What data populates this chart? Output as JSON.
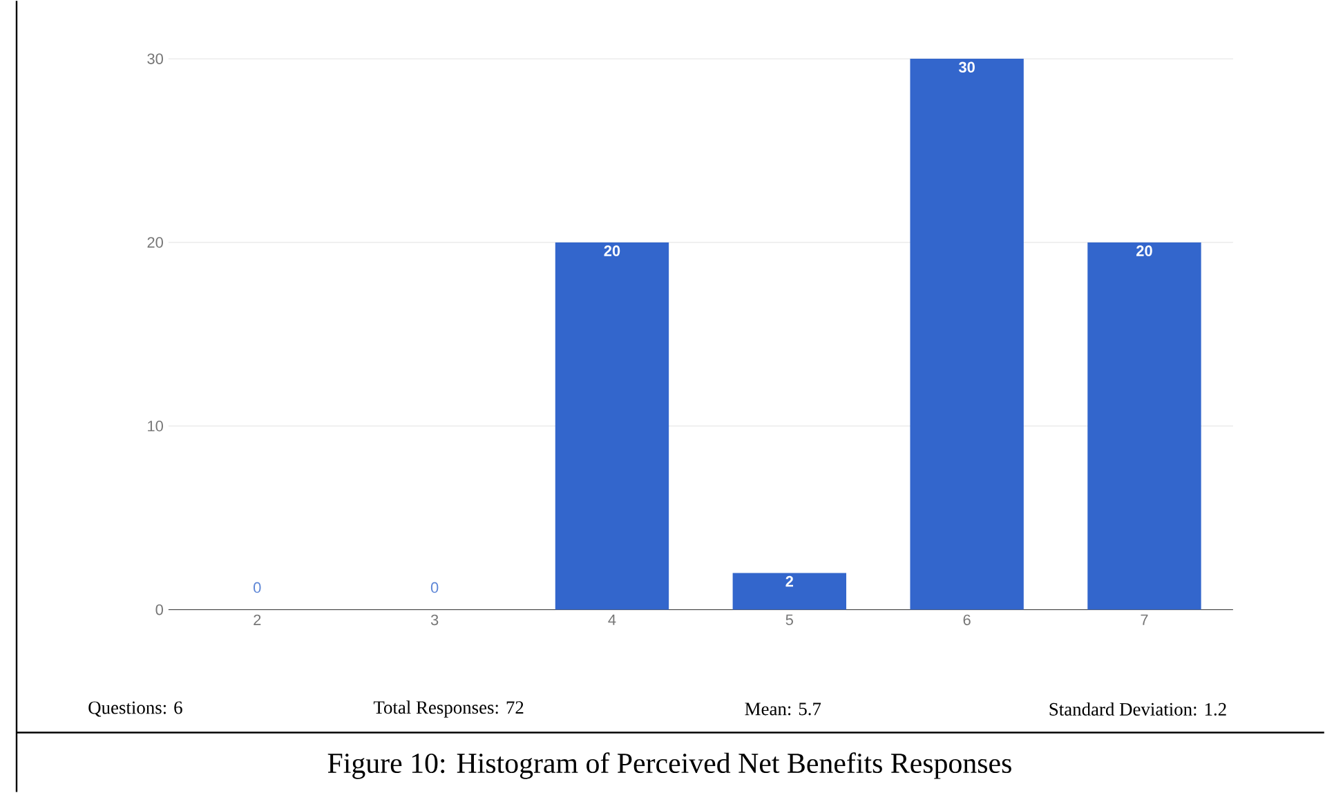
{
  "chart_data": {
    "type": "bar",
    "categories": [
      "2",
      "3",
      "4",
      "5",
      "6",
      "7"
    ],
    "values": [
      0,
      0,
      20,
      2,
      30,
      20
    ],
    "color": "#3366cc",
    "ylim": [
      0,
      30
    ],
    "yticks": [
      0,
      10,
      20,
      30
    ],
    "grid": "y",
    "data_labels": true,
    "annotations": [
      "Questions: 6",
      "Total Responses: 72",
      "Mean: 5.7",
      "Standard Deviation: 1.2",
      "Figure 10: Histogram of Perceived Net Benefits Responses"
    ]
  }
}
